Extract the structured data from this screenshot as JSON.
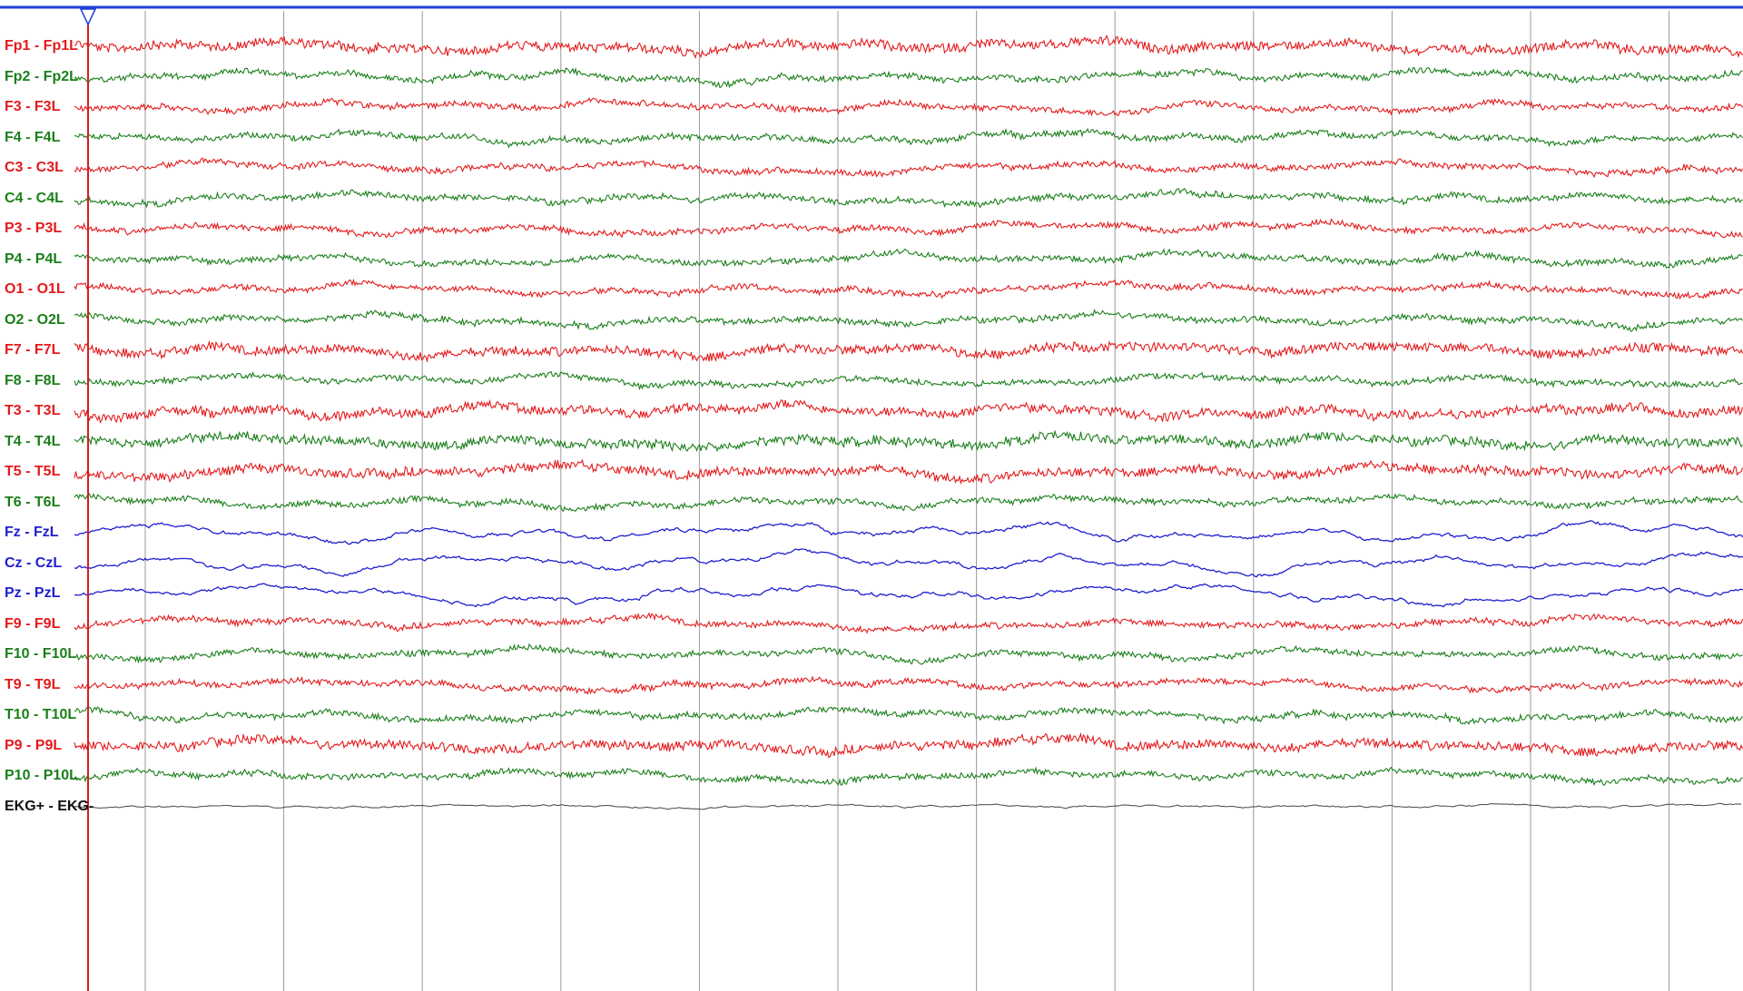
{
  "chart_data": {
    "type": "line",
    "title": "",
    "xlabel": "",
    "ylabel": "",
    "grid": true,
    "time_divisions": 12,
    "cursor": {
      "marker": "triangle-down"
    },
    "palette": {
      "left": "#e31a1c",
      "right": "#1a7f1a",
      "midline": "#1f1fd0",
      "ekg": "#555555",
      "grid": "#9a9a9a",
      "cursor": "#d41f1f",
      "timebar": "#1f3fd6"
    },
    "series": [
      {
        "name": "Fp1 - Fp1L",
        "side": "left"
      },
      {
        "name": "Fp2 - Fp2L",
        "side": "right"
      },
      {
        "name": "F3 - F3L",
        "side": "left"
      },
      {
        "name": "F4 - F4L",
        "side": "right"
      },
      {
        "name": "C3 - C3L",
        "side": "left"
      },
      {
        "name": "C4 - C4L",
        "side": "right"
      },
      {
        "name": "P3 - P3L",
        "side": "left"
      },
      {
        "name": "P4 - P4L",
        "side": "right"
      },
      {
        "name": "O1 - O1L",
        "side": "left"
      },
      {
        "name": "O2 - O2L",
        "side": "right"
      },
      {
        "name": "F7 - F7L",
        "side": "left"
      },
      {
        "name": "F8 - F8L",
        "side": "right"
      },
      {
        "name": "T3 - T3L",
        "side": "left"
      },
      {
        "name": "T4 - T4L",
        "side": "right"
      },
      {
        "name": "T5 - T5L",
        "side": "left"
      },
      {
        "name": "T6 - T6L",
        "side": "right"
      },
      {
        "name": "Fz - FzL",
        "side": "midline"
      },
      {
        "name": "Cz - CzL",
        "side": "midline"
      },
      {
        "name": "Pz - PzL",
        "side": "midline"
      },
      {
        "name": "F9 - F9L",
        "side": "left"
      },
      {
        "name": "F10 - F10L",
        "side": "right"
      },
      {
        "name": "T9 - T9L",
        "side": "left"
      },
      {
        "name": "T10 - T10L",
        "side": "right"
      },
      {
        "name": "P9 - P9L",
        "side": "left"
      },
      {
        "name": "P10 - P10L",
        "side": "right"
      },
      {
        "name": "EKG+ - EKG-",
        "side": "ekg"
      }
    ]
  }
}
